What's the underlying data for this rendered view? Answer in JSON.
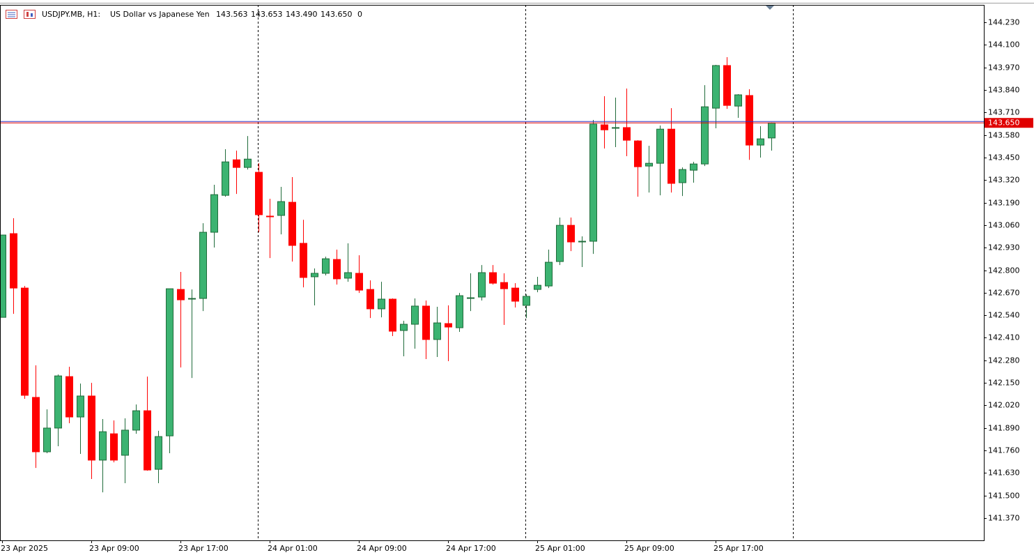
{
  "header": {
    "symbol": "USDJPY.MB, H1:",
    "description": "US Dollar vs Japanese Yen",
    "prices": [
      "143.563",
      "143.653",
      "143.490",
      "143.650"
    ],
    "volume": "0"
  },
  "chart_data": {
    "type": "candlestick",
    "categories": [
      "23 Apr 2025",
      null,
      null,
      null,
      null,
      null,
      null,
      null,
      "23 Apr 09:00",
      null,
      null,
      null,
      null,
      null,
      null,
      null,
      "23 Apr 17:00",
      null,
      null,
      null,
      null,
      null,
      null,
      null,
      "24 Apr 01:00",
      null,
      null,
      null,
      null,
      null,
      null,
      null,
      "24 Apr 09:00",
      null,
      null,
      null,
      null,
      null,
      null,
      null,
      "24 Apr 17:00",
      null,
      null,
      null,
      null,
      null,
      null,
      null,
      "25 Apr 01:00",
      null,
      null,
      null,
      null,
      null,
      null,
      null,
      "25 Apr 09:00",
      null,
      null,
      null,
      null,
      null,
      null,
      null,
      "25 Apr 17:00",
      null,
      null,
      null,
      null,
      null
    ],
    "open": [
      142.528,
      143.011,
      142.697,
      142.066,
      141.752,
      141.889,
      142.186,
      141.953,
      142.074,
      141.704,
      141.856,
      141.732,
      141.877,
      141.989,
      141.651,
      141.844,
      142.689,
      142.633,
      142.637,
      143.019,
      143.232,
      143.437,
      143.393,
      143.365,
      143.112,
      143.116,
      143.192,
      142.955,
      142.762,
      142.782,
      142.862,
      142.754,
      142.782,
      142.689,
      142.577,
      142.633,
      142.452,
      142.488,
      142.593,
      142.4,
      142.492,
      142.468,
      142.637,
      142.645,
      142.786,
      142.729,
      142.697,
      142.597,
      142.689,
      142.709,
      142.85,
      143.059,
      142.963,
      142.967,
      143.639,
      143.619,
      143.623,
      143.546,
      143.401,
      143.417,
      143.614,
      143.305,
      143.377,
      143.413,
      143.735,
      143.981,
      143.747,
      143.808,
      143.522,
      143.563
    ],
    "high": [
      143.003,
      143.1,
      142.709,
      142.251,
      141.997,
      142.198,
      142.243,
      142.146,
      142.15,
      141.941,
      141.933,
      141.945,
      142.025,
      142.186,
      141.873,
      142.693,
      142.79,
      142.689,
      143.071,
      143.293,
      143.498,
      143.49,
      143.574,
      143.417,
      143.212,
      143.281,
      143.337,
      143.091,
      142.81,
      142.878,
      142.919,
      142.955,
      142.886,
      142.741,
      142.733,
      142.637,
      142.508,
      142.637,
      142.625,
      142.589,
      142.597,
      142.669,
      142.782,
      142.83,
      142.83,
      142.782,
      142.725,
      142.661,
      142.762,
      142.919,
      143.104,
      143.104,
      142.995,
      143.667,
      143.804,
      143.796,
      143.848,
      143.55,
      143.518,
      143.635,
      143.735,
      143.393,
      143.425,
      143.868,
      143.985,
      144.029,
      143.816,
      143.844,
      143.631,
      143.653
    ],
    "low": [
      142.528,
      142.548,
      142.058,
      141.659,
      141.744,
      141.784,
      141.917,
      141.74,
      141.595,
      141.518,
      141.691,
      141.571,
      141.856,
      141.643,
      141.571,
      141.744,
      142.239,
      142.178,
      142.564,
      142.931,
      143.224,
      143.24,
      143.381,
      143.019,
      142.87,
      143.007,
      142.85,
      142.701,
      142.597,
      142.77,
      142.717,
      142.733,
      142.669,
      142.524,
      142.528,
      142.42,
      142.303,
      142.347,
      142.287,
      142.299,
      142.275,
      142.444,
      142.564,
      142.625,
      142.717,
      142.484,
      142.585,
      142.524,
      142.673,
      142.697,
      142.83,
      142.91,
      142.818,
      142.894,
      143.502,
      143.51,
      143.458,
      143.224,
      143.248,
      143.232,
      143.248,
      143.228,
      143.305,
      143.401,
      143.619,
      143.731,
      143.679,
      143.437,
      143.45,
      143.49
    ],
    "close": [
      143.003,
      142.697,
      142.078,
      141.752,
      141.889,
      142.19,
      141.953,
      142.074,
      141.704,
      141.868,
      141.704,
      141.877,
      141.989,
      141.647,
      141.84,
      142.693,
      142.629,
      142.637,
      143.019,
      143.236,
      143.425,
      143.393,
      143.441,
      143.12,
      143.108,
      143.196,
      142.943,
      142.758,
      142.782,
      142.866,
      142.75,
      142.786,
      142.685,
      142.577,
      142.633,
      142.448,
      142.488,
      142.593,
      142.4,
      142.496,
      142.472,
      142.653,
      142.641,
      142.786,
      142.725,
      142.693,
      142.621,
      142.649,
      142.713,
      142.846,
      143.059,
      142.963,
      142.967,
      143.643,
      143.61,
      143.623,
      143.55,
      143.397,
      143.417,
      143.614,
      143.301,
      143.381,
      143.413,
      143.743,
      143.981,
      143.751,
      143.812,
      143.522,
      143.558,
      143.65
    ],
    "up_color": "#3cb371",
    "down_color": "#ff0000",
    "bid": {
      "value": 143.65,
      "label": "143.650",
      "color": "#e00000"
    },
    "ask": {
      "value": 143.658,
      "color": "#3030c0"
    },
    "ylim": [
      141.241,
      144.331
    ],
    "yticks": [
      {
        "value": 141.37,
        "label": "141.370"
      },
      {
        "value": 141.5,
        "label": "141.500"
      },
      {
        "value": 141.63,
        "label": "141.630"
      },
      {
        "value": 141.76,
        "label": "141.760"
      },
      {
        "value": 141.89,
        "label": "141.890"
      },
      {
        "value": 142.02,
        "label": "142.020"
      },
      {
        "value": 142.15,
        "label": "142.150"
      },
      {
        "value": 142.28,
        "label": "142.280"
      },
      {
        "value": 142.41,
        "label": "142.410"
      },
      {
        "value": 142.54,
        "label": "142.540"
      },
      {
        "value": 142.67,
        "label": "142.670"
      },
      {
        "value": 142.8,
        "label": "142.800"
      },
      {
        "value": 142.93,
        "label": "142.930"
      },
      {
        "value": 143.06,
        "label": "143.060"
      },
      {
        "value": 143.19,
        "label": "143.190"
      },
      {
        "value": 143.32,
        "label": "143.320"
      },
      {
        "value": 143.45,
        "label": "143.450"
      },
      {
        "value": 143.58,
        "label": "143.580"
      },
      {
        "value": 143.71,
        "label": "143.710"
      },
      {
        "value": 143.84,
        "label": "143.840"
      },
      {
        "value": 143.97,
        "label": "143.970"
      },
      {
        "value": 144.1,
        "label": "144.100"
      },
      {
        "value": 144.23,
        "label": "144.230"
      }
    ],
    "grid": false
  }
}
